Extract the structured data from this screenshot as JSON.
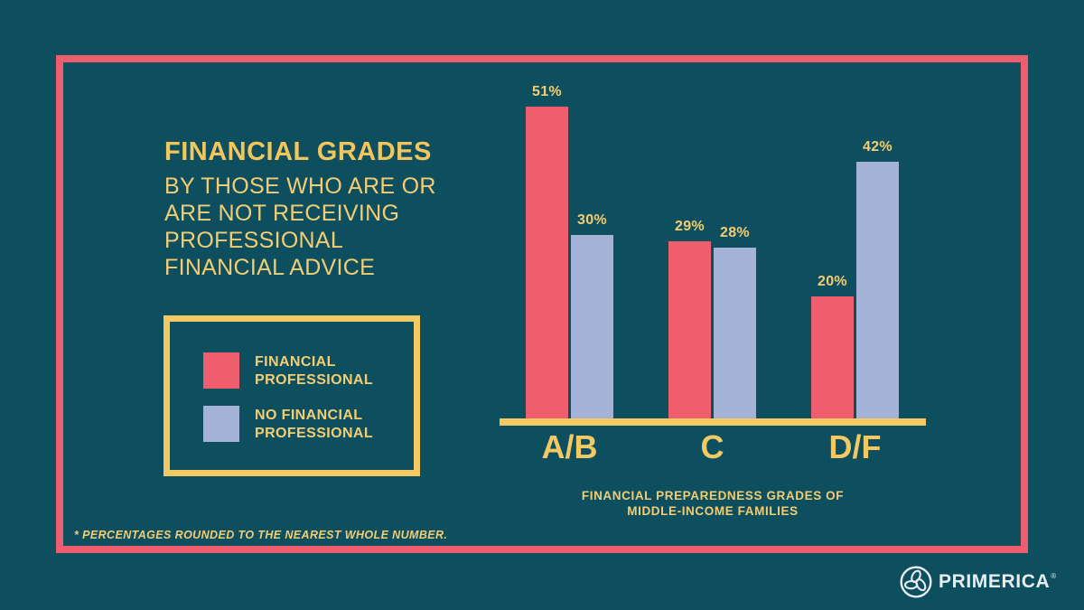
{
  "page": {
    "background_color": "#0E4F5F",
    "frame_color": "#EE5E6C",
    "accent_yellow": "#F3C963"
  },
  "title": {
    "heading": "FINANCIAL GRADES",
    "subtitle_lines": [
      "BY THOSE WHO ARE OR",
      "ARE NOT RECEIVING",
      "PROFESSIONAL",
      "FINANCIAL ADVICE"
    ]
  },
  "legend": {
    "items": [
      {
        "label_lines": [
          "FINANCIAL",
          "PROFESSIONAL"
        ],
        "color": "#EE5E6C"
      },
      {
        "label_lines": [
          "NO FINANCIAL",
          "PROFESSIONAL"
        ],
        "color": "#A5B2D8"
      }
    ]
  },
  "chart_data": {
    "type": "bar",
    "categories": [
      "A/B",
      "C",
      "D/F"
    ],
    "series": [
      {
        "name": "FINANCIAL PROFESSIONAL",
        "color": "#EE5E6C",
        "values": [
          51,
          29,
          20
        ]
      },
      {
        "name": "NO FINANCIAL PROFESSIONAL",
        "color": "#A5B2D8",
        "values": [
          30,
          28,
          42
        ]
      }
    ],
    "value_suffix": "%",
    "title": "FINANCIAL GRADES BY THOSE WHO ARE OR ARE NOT RECEIVING PROFESSIONAL FINANCIAL ADVICE",
    "xlabel": "FINANCIAL PREPAREDNESS GRADES OF MIDDLE-INCOME FAMILIES",
    "xlabel_lines": [
      "FINANCIAL PREPAREDNESS GRADES OF",
      "MIDDLE-INCOME FAMILIES"
    ],
    "ylabel": "",
    "ylim": [
      0,
      55
    ],
    "grid": false,
    "legend_position": "left",
    "axis_color": "#F3C963"
  },
  "footnote": "* PERCENTAGES ROUNDED TO THE NEAREST WHOLE NUMBER.",
  "logo": {
    "text": "PRIMERICA",
    "registered": "®"
  }
}
